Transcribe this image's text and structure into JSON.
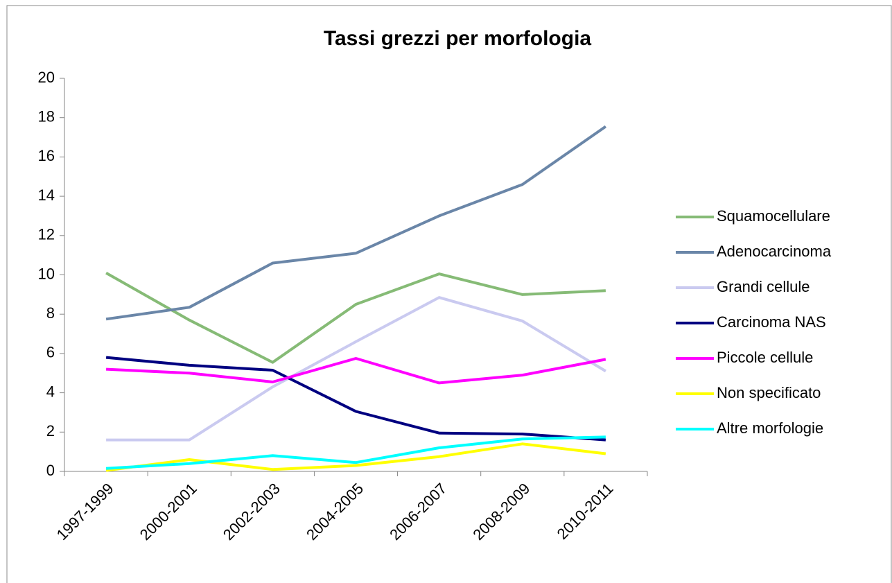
{
  "chart_data": {
    "type": "line",
    "title": "Tassi grezzi per morfologia",
    "categories": [
      "1997-1999",
      "2000-2001",
      "2002-2003",
      "2004-2005",
      "2006-2007",
      "2008-2009",
      "2010-2011"
    ],
    "series": [
      {
        "name": "Squamocellulare",
        "color": "#86bb76",
        "values": [
          10.1,
          7.7,
          5.55,
          8.5,
          10.05,
          9.0,
          9.2
        ]
      },
      {
        "name": "Adenocarcinoma",
        "color": "#6a86a8",
        "values": [
          7.75,
          8.35,
          10.6,
          11.1,
          13.0,
          14.6,
          17.55
        ]
      },
      {
        "name": "Grandi cellule",
        "color": "#cacaf0",
        "values": [
          1.6,
          1.6,
          4.3,
          6.6,
          8.85,
          7.65,
          5.1
        ]
      },
      {
        "name": "Carcinoma NAS",
        "color": "#000080",
        "values": [
          5.8,
          5.4,
          5.15,
          3.05,
          1.95,
          1.9,
          1.6
        ]
      },
      {
        "name": "Piccole cellule",
        "color": "#ff00ff",
        "values": [
          5.2,
          5.0,
          4.55,
          5.75,
          4.5,
          4.9,
          5.7
        ]
      },
      {
        "name": "Non specificato",
        "color": "#ffff00",
        "values": [
          0.05,
          0.6,
          0.1,
          0.3,
          0.75,
          1.4,
          0.9
        ]
      },
      {
        "name": "Altre morfologie",
        "color": "#00ffff",
        "values": [
          0.15,
          0.4,
          0.8,
          0.45,
          1.2,
          1.65,
          1.75
        ]
      }
    ],
    "ylim": [
      0,
      20
    ],
    "yticks": [
      0,
      2,
      4,
      6,
      8,
      10,
      12,
      14,
      16,
      18,
      20
    ],
    "legend": "right"
  }
}
